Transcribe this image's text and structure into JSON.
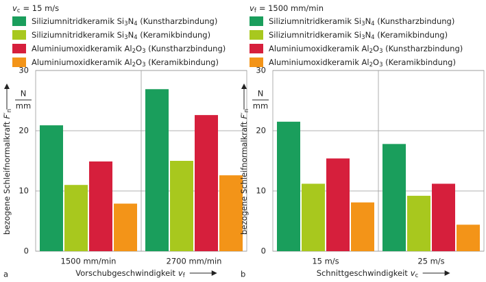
{
  "chart_data": [
    {
      "type": "bar",
      "panel": "a",
      "condition": {
        "symbol": "v",
        "subscript": "c",
        "text": "= 15 m/s"
      },
      "categories": [
        "1500 mm/min",
        "2700 mm/min"
      ],
      "series": [
        {
          "name": "Siliziumnitridkeramik Si3N4 (Kunstharzbindung)",
          "color": "#1a9e5c",
          "values": [
            20.9,
            26.9
          ]
        },
        {
          "name": "Siliziumnitridkeramik Si3N4 (Keramikbindung)",
          "color": "#a8c81e",
          "values": [
            11.0,
            15.0
          ]
        },
        {
          "name": "Aluminiumoxidkeramik Al2O3 (Kunstharzbindung)",
          "color": "#d61f3c",
          "values": [
            14.9,
            22.6
          ]
        },
        {
          "name": "Aluminiumoxidkeramik Al2O3 (Keramikbindung)",
          "color": "#f39418",
          "values": [
            7.9,
            12.6
          ]
        }
      ],
      "ylim": [
        0,
        30
      ],
      "yticks": [
        0,
        10,
        20,
        30
      ],
      "grid": true,
      "ylabel": {
        "text": "bezogene Schleifnormalkraft",
        "symbol": "F′",
        "subscript": "n"
      },
      "unit": {
        "numerator": "N",
        "denominator": "mm"
      },
      "xlabel": {
        "text": "Vorschubgeschwindigkeit",
        "symbol": "v",
        "subscript": "f"
      }
    },
    {
      "type": "bar",
      "panel": "b",
      "condition": {
        "symbol": "v",
        "subscript": "f",
        "text": "= 1500 mm/min"
      },
      "categories": [
        "15 m/s",
        "25 m/s"
      ],
      "series": [
        {
          "name": "Siliziumnitridkeramik Si3N4 (Kunstharzbindung)",
          "color": "#1a9e5c",
          "values": [
            21.5,
            17.8
          ]
        },
        {
          "name": "Siliziumnitridkeramik Si3N4 (Keramikbindung)",
          "color": "#a8c81e",
          "values": [
            11.2,
            9.2
          ]
        },
        {
          "name": "Aluminiumoxidkeramik Al2O3 (Kunstharzbindung)",
          "color": "#d61f3c",
          "values": [
            15.4,
            11.2
          ]
        },
        {
          "name": "Aluminiumoxidkeramik Al2O3 (Keramikbindung)",
          "color": "#f39418",
          "values": [
            8.1,
            4.4
          ]
        }
      ],
      "ylim": [
        0,
        30
      ],
      "yticks": [
        0,
        10,
        20,
        30
      ],
      "grid": true,
      "ylabel": {
        "text": "bezogene Schleifnormalkraft",
        "symbol": "F′",
        "subscript": "n"
      },
      "unit": {
        "numerator": "N",
        "denominator": "mm"
      },
      "xlabel": {
        "text": "Schnittgeschwindigkeit",
        "symbol": "v",
        "subscript": "c"
      }
    }
  ]
}
